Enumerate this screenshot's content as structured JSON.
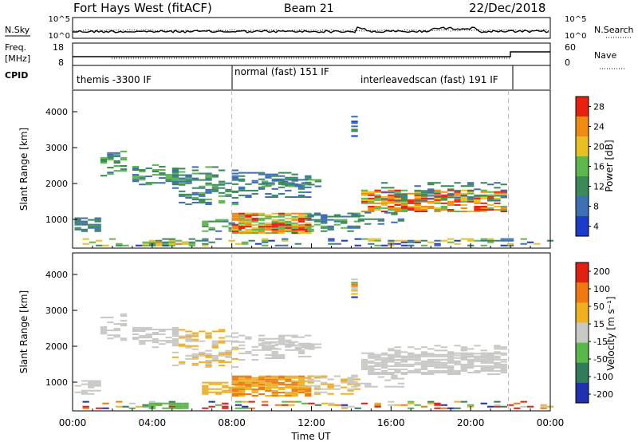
{
  "header": {
    "radar": "Fort Hays West (fitACF)",
    "beam": "Beam 21",
    "date": "22/Dec/2018"
  },
  "noise_panel": {
    "left_label": "N.Sky",
    "right_label": "N.Search",
    "left_ticks": [
      "10^5",
      "10^0"
    ],
    "right_ticks": [
      "10^5",
      "10^0"
    ]
  },
  "freq_panel": {
    "left_label_line1": "Freq.",
    "left_label_line2": "[MHz]",
    "left_ticks": [
      "18",
      "8"
    ],
    "right_label": "Nave",
    "right_ticks": [
      "60",
      "0"
    ]
  },
  "cpid_panel": {
    "label": "CPID",
    "segments": [
      "themis -3300 IF",
      "normal (fast) 151 IF",
      "interleavedscan (fast) 191 IF"
    ]
  },
  "colors": {
    "power": [
      "#1a3cc8",
      "#3c6fb4",
      "#3a8a5a",
      "#5cb84a",
      "#e8c020",
      "#f08a10",
      "#e82010"
    ],
    "velocity": [
      "#2030b0",
      "#2f7d5a",
      "#58b84a",
      "#c8c8c4",
      "#f0b020",
      "#f07a10",
      "#e02010"
    ],
    "blank_gray": "#c8c8c4"
  },
  "chart_data": [
    {
      "type": "heatmap",
      "name": "power",
      "ylabel": "Slant Range [km]",
      "xlabel": "Time UT",
      "ylim": [
        200,
        4600
      ],
      "xlim_hours": [
        0,
        24
      ],
      "y_ticks": [
        "1000",
        "2000",
        "3000",
        "4000"
      ],
      "x_ticks": [
        "00:00",
        "04:00",
        "08:00",
        "12:00",
        "16:00",
        "20:00",
        "00:00"
      ],
      "colorbar_label": "Power [dB]",
      "colorbar_ticks": [
        "4",
        "8",
        "12",
        "16",
        "20",
        "24",
        "28"
      ],
      "mode_boundaries_hours": [
        8.0,
        21.9
      ]
    },
    {
      "type": "heatmap",
      "name": "velocity",
      "ylabel": "Slant Range [km]",
      "xlabel": "Time UT",
      "ylim": [
        200,
        4600
      ],
      "xlim_hours": [
        0,
        24
      ],
      "y_ticks": [
        "1000",
        "2000",
        "3000",
        "4000"
      ],
      "x_ticks": [
        "00:00",
        "04:00",
        "08:00",
        "12:00",
        "16:00",
        "20:00",
        "00:00"
      ],
      "colorbar_label": "Velocity [m s⁻¹]",
      "colorbar_ticks": [
        "200",
        "100",
        "50",
        "15",
        "-15",
        "-50",
        "-100",
        "-200"
      ],
      "mode_boundaries_hours": [
        8.0,
        21.9
      ]
    }
  ],
  "time_axis": {
    "ticks": [
      "00:00",
      "04:00",
      "08:00",
      "12:00",
      "16:00",
      "20:00",
      "00:00"
    ],
    "label": "Time UT"
  }
}
